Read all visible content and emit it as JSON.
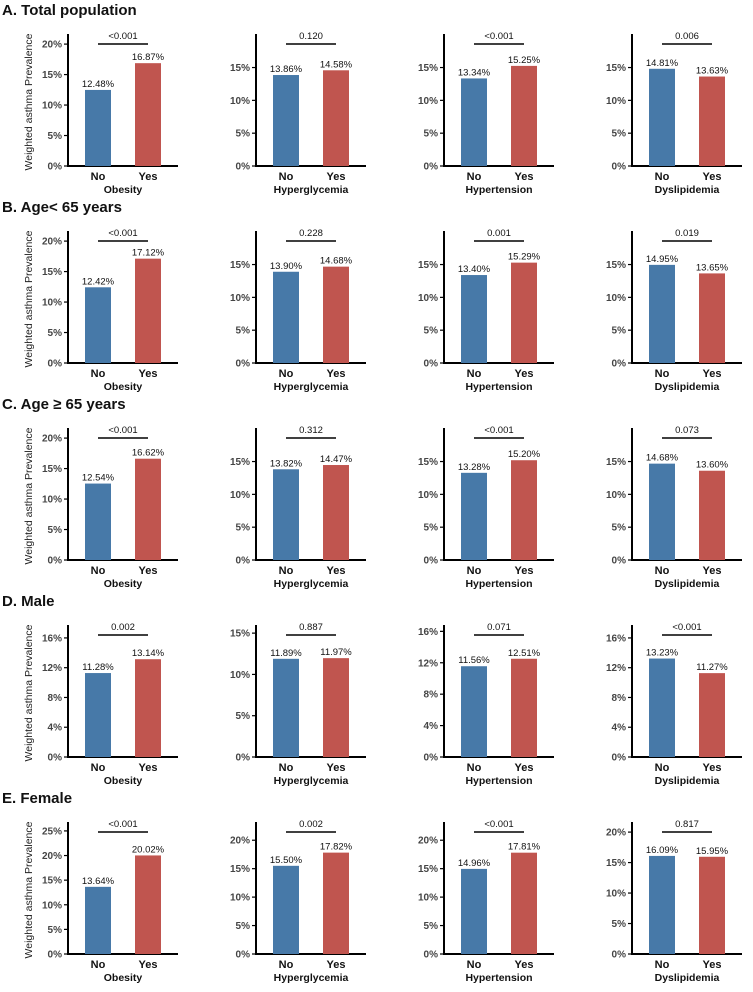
{
  "chart_data": {
    "type": "bar",
    "ylabel": "Weighted asthma Prevalence",
    "categories": [
      "No",
      "Yes"
    ],
    "colors": {
      "No": "#4779a8",
      "Yes": "#c0554f"
    },
    "sections": [
      {
        "title": "A. Total population",
        "panels": [
          {
            "xlabel": "Obesity",
            "values": [
              12.48,
              16.87
            ],
            "labels": [
              "12.48%",
              "16.87%"
            ],
            "p": "<0.001",
            "ylim": [
              0,
              21
            ],
            "ticks": [
              0,
              5,
              10,
              15,
              20
            ]
          },
          {
            "xlabel": "Hyperglycemia",
            "values": [
              13.86,
              14.58
            ],
            "labels": [
              "13.86%",
              "14.58%"
            ],
            "p": "0.120",
            "ylim": [
              0,
              19.5
            ],
            "ticks": [
              0,
              5,
              10,
              15
            ]
          },
          {
            "xlabel": "Hypertension",
            "values": [
              13.34,
              15.25
            ],
            "labels": [
              "13.34%",
              "15.25%"
            ],
            "p": "<0.001",
            "ylim": [
              0,
              19.5
            ],
            "ticks": [
              0,
              5,
              10,
              15
            ]
          },
          {
            "xlabel": "Dyslipidemia",
            "values": [
              14.81,
              13.63
            ],
            "labels": [
              "14.81%",
              "13.63%"
            ],
            "p": "0.006",
            "ylim": [
              0,
              19.5
            ],
            "ticks": [
              0,
              5,
              10,
              15
            ]
          }
        ]
      },
      {
        "title": "B. Age< 65 years",
        "panels": [
          {
            "xlabel": "Obesity",
            "values": [
              12.42,
              17.12
            ],
            "labels": [
              "12.42%",
              "17.12%"
            ],
            "p": "<0.001",
            "ylim": [
              0,
              21
            ],
            "ticks": [
              0,
              5,
              10,
              15,
              20
            ]
          },
          {
            "xlabel": "Hyperglycemia",
            "values": [
              13.9,
              14.68
            ],
            "labels": [
              "13.90%",
              "14.68%"
            ],
            "p": "0.228",
            "ylim": [
              0,
              19.5
            ],
            "ticks": [
              0,
              5,
              10,
              15
            ]
          },
          {
            "xlabel": "Hypertension",
            "values": [
              13.4,
              15.29
            ],
            "labels": [
              "13.40%",
              "15.29%"
            ],
            "p": "0.001",
            "ylim": [
              0,
              19.5
            ],
            "ticks": [
              0,
              5,
              10,
              15
            ]
          },
          {
            "xlabel": "Dyslipidemia",
            "values": [
              14.95,
              13.65
            ],
            "labels": [
              "14.95%",
              "13.65%"
            ],
            "p": "0.019",
            "ylim": [
              0,
              19.5
            ],
            "ticks": [
              0,
              5,
              10,
              15
            ]
          }
        ]
      },
      {
        "title": "C. Age ≥ 65 years",
        "panels": [
          {
            "xlabel": "Obesity",
            "values": [
              12.54,
              16.62
            ],
            "labels": [
              "12.54%",
              "16.62%"
            ],
            "p": "<0.001",
            "ylim": [
              0,
              21
            ],
            "ticks": [
              0,
              5,
              10,
              15,
              20
            ]
          },
          {
            "xlabel": "Hyperglycemia",
            "values": [
              13.82,
              14.47
            ],
            "labels": [
              "13.82%",
              "14.47%"
            ],
            "p": "0.312",
            "ylim": [
              0,
              19.5
            ],
            "ticks": [
              0,
              5,
              10,
              15
            ]
          },
          {
            "xlabel": "Hypertension",
            "values": [
              13.28,
              15.2
            ],
            "labels": [
              "13.28%",
              "15.20%"
            ],
            "p": "<0.001",
            "ylim": [
              0,
              19.5
            ],
            "ticks": [
              0,
              5,
              10,
              15
            ]
          },
          {
            "xlabel": "Dyslipidemia",
            "values": [
              14.68,
              13.6
            ],
            "labels": [
              "14.68%",
              "13.60%"
            ],
            "p": "0.073",
            "ylim": [
              0,
              19.5
            ],
            "ticks": [
              0,
              5,
              10,
              15
            ]
          }
        ]
      },
      {
        "title": "D. Male",
        "panels": [
          {
            "xlabel": "Obesity",
            "values": [
              11.28,
              13.14
            ],
            "labels": [
              "11.28%",
              "13.14%"
            ],
            "p": "0.002",
            "ylim": [
              0,
              17.2
            ],
            "ticks": [
              0,
              4,
              8,
              12,
              16
            ]
          },
          {
            "xlabel": "Hyperglycemia",
            "values": [
              11.89,
              11.97
            ],
            "labels": [
              "11.89%",
              "11.97%"
            ],
            "p": "0.887",
            "ylim": [
              0,
              15.5
            ],
            "ticks": [
              0,
              5,
              10,
              15
            ]
          },
          {
            "xlabel": "Hypertension",
            "values": [
              11.56,
              12.51
            ],
            "labels": [
              "11.56%",
              "12.51%"
            ],
            "p": "0.071",
            "ylim": [
              0,
              16.3
            ],
            "ticks": [
              0,
              4,
              8,
              12,
              16
            ]
          },
          {
            "xlabel": "Dyslipidemia",
            "values": [
              13.23,
              11.27
            ],
            "labels": [
              "13.23%",
              "11.27%"
            ],
            "p": "<0.001",
            "ylim": [
              0,
              17.2
            ],
            "ticks": [
              0,
              4,
              8,
              12,
              16
            ]
          }
        ]
      },
      {
        "title": "E. Female",
        "panels": [
          {
            "xlabel": "Obesity",
            "values": [
              13.64,
              20.02
            ],
            "labels": [
              "13.64%",
              "20.02%"
            ],
            "p": "<0.001",
            "ylim": [
              0,
              26
            ],
            "ticks": [
              0,
              5,
              10,
              15,
              20,
              25
            ]
          },
          {
            "xlabel": "Hyperglycemia",
            "values": [
              15.5,
              17.82
            ],
            "labels": [
              "15.50%",
              "17.82%"
            ],
            "p": "0.002",
            "ylim": [
              0,
              22.5
            ],
            "ticks": [
              0,
              5,
              10,
              15,
              20
            ]
          },
          {
            "xlabel": "Hypertension",
            "values": [
              14.96,
              17.81
            ],
            "labels": [
              "14.96%",
              "17.81%"
            ],
            "p": "<0.001",
            "ylim": [
              0,
              22.5
            ],
            "ticks": [
              0,
              5,
              10,
              15,
              20
            ]
          },
          {
            "xlabel": "Dyslipidemia",
            "values": [
              16.09,
              15.95
            ],
            "labels": [
              "16.09%",
              "15.95%"
            ],
            "p": "0.817",
            "ylim": [
              0,
              21
            ],
            "ticks": [
              0,
              5,
              10,
              15,
              20
            ]
          }
        ]
      }
    ]
  }
}
